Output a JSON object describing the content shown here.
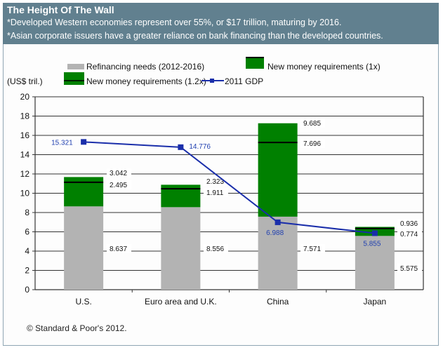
{
  "header": {
    "title": "The Height Of The Wall",
    "notes": [
      "*Developed Western economies represent over 55%, or $17 trillion, maturing by 2016.",
      "*Asian corporate  issuers have a greater reliance on bank financing than the developed countries."
    ]
  },
  "footer": {
    "copyright": "© Standard & Poor's 2012."
  },
  "colors": {
    "header_bg": "#61808f",
    "refinancing": "#b3b3b3",
    "new_money": "#008000",
    "gdp_line": "#1a2eaa",
    "gdp_label": "#1f3fb0"
  },
  "chart_data": {
    "type": "bar",
    "stacked": true,
    "title": "The Height Of The Wall",
    "ylabel": "(US$ tril.)",
    "xlabel": "",
    "ylim": [
      0,
      20
    ],
    "yticks": [
      0,
      2,
      4,
      6,
      8,
      10,
      12,
      14,
      16,
      18,
      20
    ],
    "grid": true,
    "legend_position": "top",
    "categories": [
      "U.S.",
      "Euro area and U.K.",
      "China",
      "Japan"
    ],
    "series": [
      {
        "name": "Refinancing needs (2012-2016)",
        "kind": "bar",
        "values": [
          8.637,
          8.556,
          7.571,
          5.575
        ]
      },
      {
        "name": "New money requirements (1.2x)",
        "kind": "bar",
        "values": [
          3.042,
          2.323,
          9.685,
          0.936
        ]
      },
      {
        "name": "New money requirements (1x)",
        "kind": "marker",
        "values": [
          2.495,
          1.911,
          7.696,
          0.774
        ]
      },
      {
        "name": "2011 GDP",
        "kind": "line",
        "values": [
          15.321,
          14.776,
          6.988,
          5.855
        ]
      }
    ],
    "legend": [
      {
        "label": "Refinancing needs (2012-2016)",
        "symbol": "gray-bar"
      },
      {
        "label": "New money requirements (1x)",
        "symbol": "green-bar-black-top"
      },
      {
        "label": "New money requirements (1.2x)",
        "symbol": "green-bar-black-mid"
      },
      {
        "label": "2011 GDP",
        "symbol": "blue-line-square"
      }
    ]
  }
}
